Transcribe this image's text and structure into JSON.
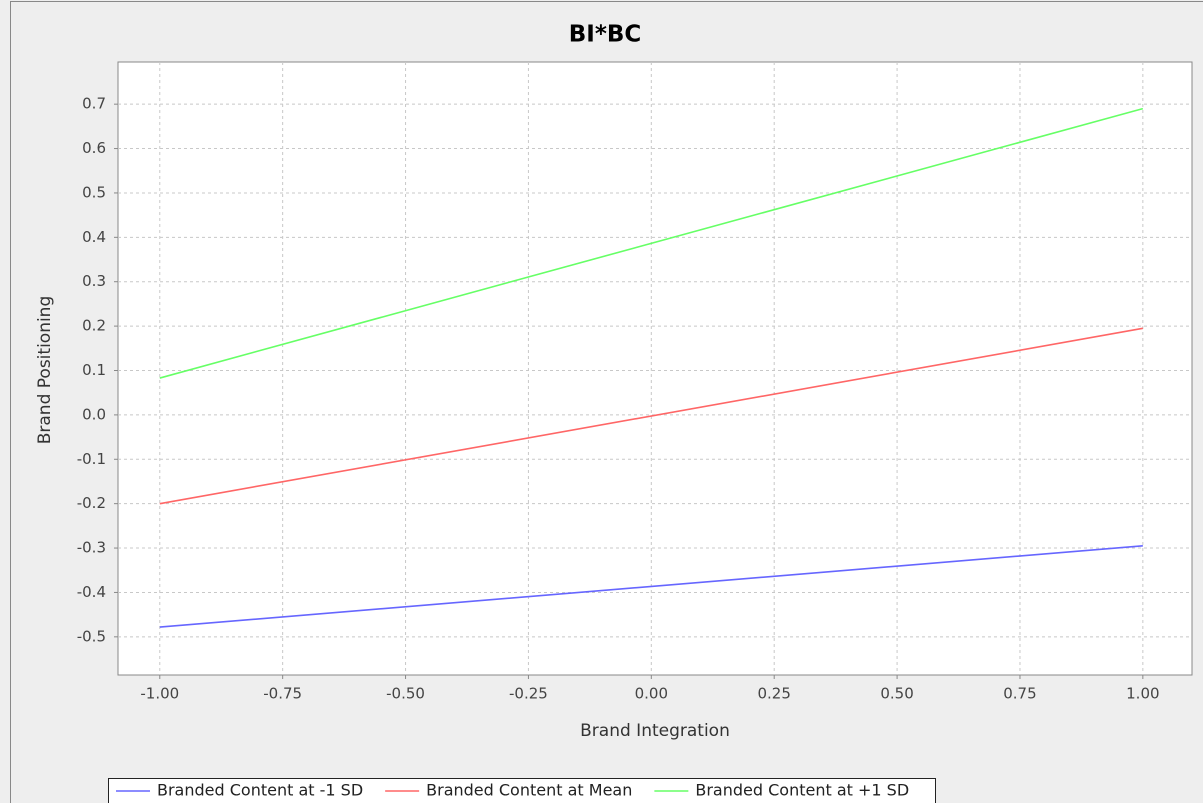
{
  "chart_data": {
    "type": "line",
    "title": "BI*BC",
    "x_label": "Brand Integration",
    "y_label": "Brand Positioning",
    "x": [
      -1,
      1
    ],
    "series": [
      {
        "name": "Branded Content at -1 SD",
        "color": "#6666ff",
        "values": [
          -0.478,
          -0.295
        ]
      },
      {
        "name": "Branded Content at Mean",
        "color": "#ff6666",
        "values": [
          -0.2,
          0.195
        ]
      },
      {
        "name": "Branded Content at +1 SD",
        "color": "#66ff66",
        "values": [
          0.083,
          0.69
        ]
      }
    ],
    "xlim": [
      -1.085,
      1.1
    ],
    "xticks": [
      {
        "value": -1,
        "label": "-1.00"
      },
      {
        "value": -0.75,
        "label": "-0.75"
      },
      {
        "value": -0.5,
        "label": "-0.50"
      },
      {
        "value": -0.25,
        "label": "-0.25"
      },
      {
        "value": 0,
        "label": "0.00"
      },
      {
        "value": 0.25,
        "label": "0.25"
      },
      {
        "value": 0.5,
        "label": "0.50"
      },
      {
        "value": 0.75,
        "label": "0.75"
      },
      {
        "value": 1,
        "label": "1.00"
      }
    ],
    "ylim": [
      -0.586,
      0.795
    ],
    "yticks": [
      -0.5,
      -0.4,
      -0.3,
      -0.2,
      -0.1,
      {
        "value": 0,
        "label": "0.0"
      },
      0.1,
      0.2,
      0.3,
      0.4,
      0.5,
      0.6,
      0.7
    ],
    "grid": true
  }
}
